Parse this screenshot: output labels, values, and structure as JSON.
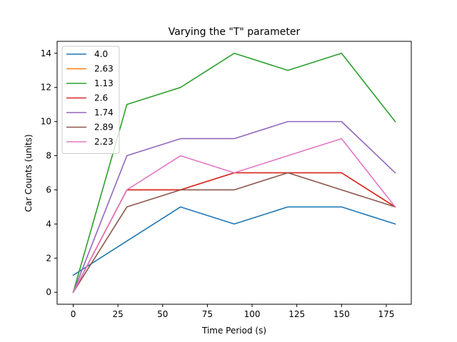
{
  "chart_data": {
    "type": "line",
    "title": "Varying the \"T\" parameter",
    "xlabel": "Time Period (s)",
    "ylabel": "Car Counts (units)",
    "xlim": [
      -9,
      189
    ],
    "ylim": [
      -0.7,
      14.7
    ],
    "xticks": [
      0,
      25,
      50,
      75,
      100,
      125,
      150,
      175
    ],
    "yticks": [
      0,
      2,
      4,
      6,
      8,
      10,
      12,
      14
    ],
    "grid": false,
    "legend_position": "top-left",
    "x": [
      0,
      30,
      60,
      90,
      120,
      150,
      180
    ],
    "series": [
      {
        "name": "4.0",
        "color": "#1f77b4",
        "values": [
          1,
          3,
          5,
          4,
          5,
          5,
          4
        ]
      },
      {
        "name": "2.63",
        "color": "#ff7f0e",
        "values": [
          0,
          6,
          6,
          7,
          7,
          7,
          5
        ]
      },
      {
        "name": "1.13",
        "color": "#2ca02c",
        "values": [
          0,
          11,
          12,
          14,
          13,
          14,
          10
        ]
      },
      {
        "name": "2.6",
        "color": "#d62728",
        "values": [
          0,
          6,
          6,
          7,
          7,
          7,
          5
        ]
      },
      {
        "name": "1.74",
        "color": "#9467bd",
        "values": [
          0,
          8,
          9,
          9,
          10,
          10,
          7
        ]
      },
      {
        "name": "2.89",
        "color": "#8c564b",
        "values": [
          0,
          5,
          6,
          6,
          7,
          6,
          5
        ]
      },
      {
        "name": "2.23",
        "color": "#e377c2",
        "values": [
          0,
          6,
          8,
          7,
          8,
          9,
          5
        ]
      }
    ]
  }
}
